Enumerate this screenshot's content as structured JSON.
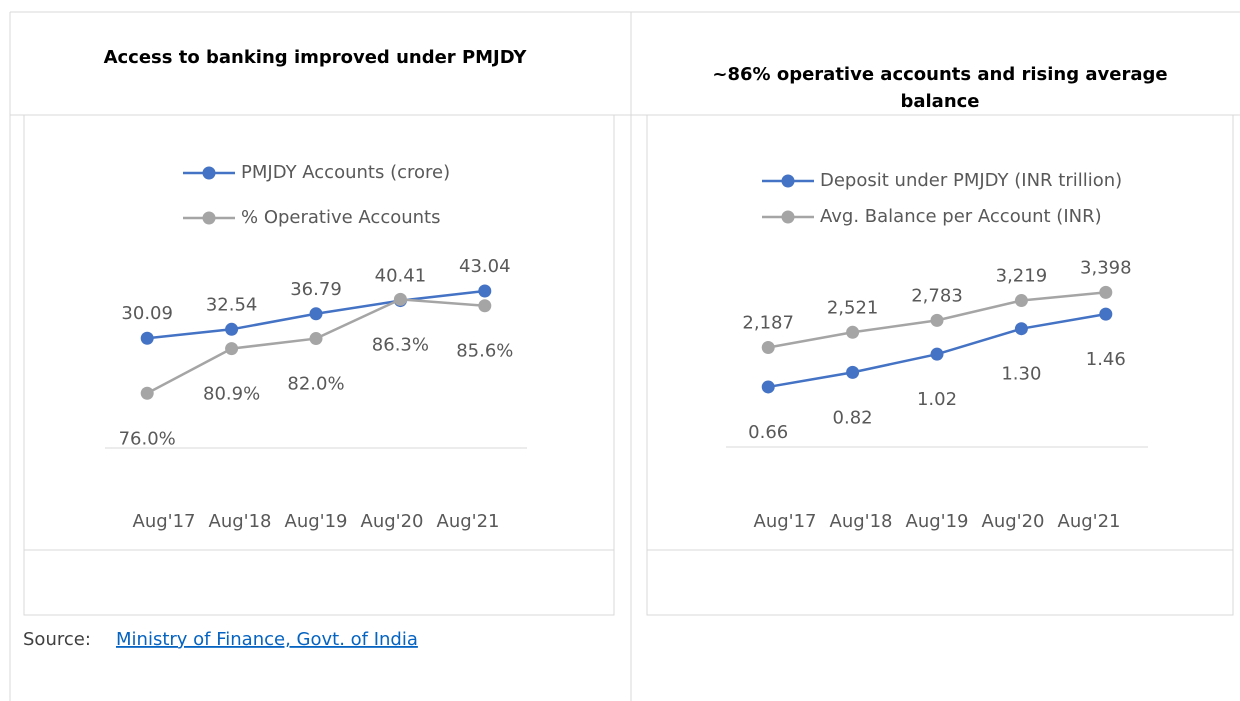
{
  "chart_data": [
    {
      "type": "line",
      "title": "Access to banking improved under PMJDY",
      "categories": [
        "Aug'17",
        "Aug'18",
        "Aug'19",
        "Aug'20",
        "Aug'21"
      ],
      "series": [
        {
          "name": "PMJDY Accounts (crore)",
          "color": "#4472c4",
          "values": [
            30.09,
            32.54,
            36.79,
            40.41,
            43.04
          ]
        },
        {
          "name": "% Operative Accounts",
          "color": "#a5a5a5",
          "axis": "y2",
          "values": [
            76.0,
            80.9,
            82.0,
            86.3,
            85.6
          ],
          "value_labels": [
            "76.0%",
            "80.9%",
            "82.0%",
            "86.3%",
            "85.6%"
          ]
        }
      ],
      "ylim": [
        0,
        50
      ],
      "y2lim": [
        70,
        90
      ]
    },
    {
      "type": "line",
      "title": "~86% operative accounts and rising average balance",
      "categories": [
        "Aug'17",
        "Aug'18",
        "Aug'19",
        "Aug'20",
        "Aug'21"
      ],
      "series": [
        {
          "name": "Deposit under PMJDY (INR trillion)",
          "color": "#4472c4",
          "values": [
            0.66,
            0.82,
            1.02,
            1.3,
            1.46
          ],
          "value_labels": [
            "0.66",
            "0.82",
            "1.02",
            "1.30",
            "1.46"
          ]
        },
        {
          "name": "Avg. Balance per Account (INR)",
          "color": "#a5a5a5",
          "axis": "y2",
          "values": [
            2187,
            2521,
            2783,
            3219,
            3398
          ],
          "value_labels": [
            "2,187",
            "2,521",
            "2,783",
            "3,219",
            "3,398"
          ]
        }
      ],
      "ylim": [
        0,
        2
      ],
      "y2lim": [
        0,
        4000
      ]
    }
  ],
  "source": {
    "label": "Source:",
    "link": "Ministry of Finance, Govt. of India"
  }
}
